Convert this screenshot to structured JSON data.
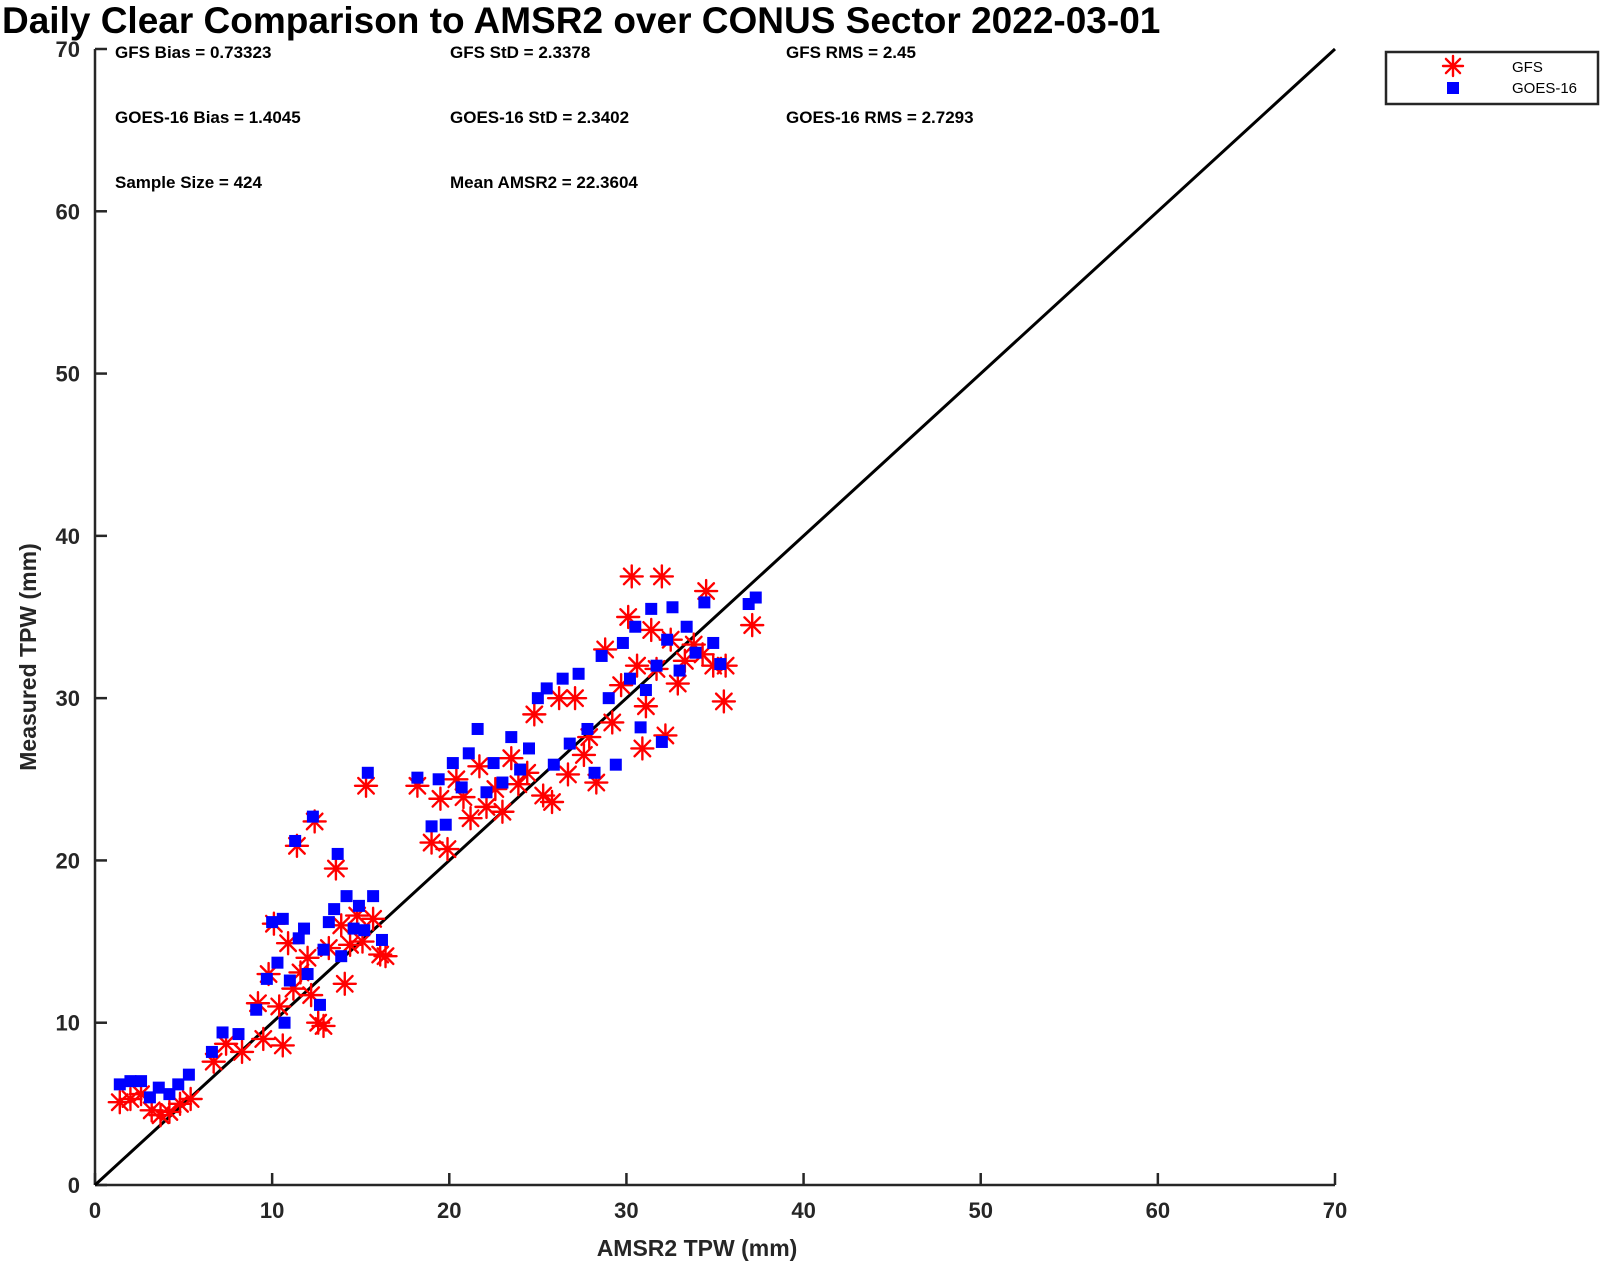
{
  "chart_data": {
    "type": "scatter",
    "title": "Daily Clear Comparison to AMSR2 over CONUS Sector 2022-03-01",
    "xlabel": "AMSR2 TPW (mm)",
    "ylabel": "Measured TPW (mm)",
    "xlim": [
      0,
      70
    ],
    "ylim": [
      0,
      70
    ],
    "xticks": [
      "0",
      "10",
      "20",
      "30",
      "40",
      "50",
      "60",
      "70"
    ],
    "yticks": [
      "0",
      "10",
      "20",
      "30",
      "40",
      "50",
      "60",
      "70"
    ],
    "reference_line": {
      "name": "1:1 line",
      "from": [
        0,
        0
      ],
      "to": [
        70,
        70
      ],
      "color": "#000000"
    },
    "stats": [
      "GFS Bias = 0.73323",
      "GFS StD = 2.3378",
      "GFS RMS = 2.45",
      "GOES-16 Bias = 1.4045",
      "GOES-16 StD = 2.3402",
      "GOES-16 RMS = 2.7293",
      "Sample Size = 424",
      "Mean AMSR2 = 22.3604"
    ],
    "legend": {
      "position": "top-right",
      "entries": [
        "GFS",
        "GOES-16"
      ]
    },
    "series": [
      {
        "name": "GFS",
        "marker": "asterisk",
        "color": "#ff0000",
        "points": [
          [
            1.4,
            5.1
          ],
          [
            2.0,
            5.3
          ],
          [
            2.6,
            5.6
          ],
          [
            3.2,
            4.6
          ],
          [
            3.7,
            4.3
          ],
          [
            4.2,
            4.5
          ],
          [
            4.8,
            5.0
          ],
          [
            5.4,
            5.3
          ],
          [
            6.7,
            7.6
          ],
          [
            7.4,
            8.7
          ],
          [
            8.3,
            8.2
          ],
          [
            9.2,
            11.2
          ],
          [
            9.5,
            9.0
          ],
          [
            9.8,
            13.0
          ],
          [
            10.1,
            16.1
          ],
          [
            10.4,
            11.0
          ],
          [
            10.6,
            8.6
          ],
          [
            10.9,
            14.9
          ],
          [
            11.2,
            12.1
          ],
          [
            11.4,
            20.9
          ],
          [
            11.6,
            13.1
          ],
          [
            12.0,
            14.0
          ],
          [
            12.2,
            11.7
          ],
          [
            12.4,
            22.4
          ],
          [
            12.6,
            10.0
          ],
          [
            12.9,
            9.8
          ],
          [
            13.2,
            14.6
          ],
          [
            13.6,
            19.5
          ],
          [
            13.9,
            16.0
          ],
          [
            14.1,
            12.4
          ],
          [
            14.4,
            14.8
          ],
          [
            14.8,
            16.6
          ],
          [
            15.1,
            15.0
          ],
          [
            15.3,
            24.6
          ],
          [
            15.7,
            16.4
          ],
          [
            16.1,
            14.2
          ],
          [
            16.4,
            14.1
          ],
          [
            18.2,
            24.6
          ],
          [
            19.0,
            21.1
          ],
          [
            19.5,
            23.8
          ],
          [
            19.9,
            20.7
          ],
          [
            20.4,
            25.0
          ],
          [
            20.8,
            23.9
          ],
          [
            21.2,
            22.6
          ],
          [
            21.7,
            25.8
          ],
          [
            22.1,
            23.3
          ],
          [
            22.6,
            24.4
          ],
          [
            23.0,
            23.0
          ],
          [
            23.5,
            26.3
          ],
          [
            23.9,
            24.7
          ],
          [
            24.4,
            25.4
          ],
          [
            24.8,
            29.0
          ],
          [
            25.3,
            24.0
          ],
          [
            25.8,
            23.6
          ],
          [
            26.2,
            30.0
          ],
          [
            26.7,
            25.3
          ],
          [
            27.1,
            30.0
          ],
          [
            27.6,
            26.5
          ],
          [
            27.9,
            27.6
          ],
          [
            28.3,
            24.8
          ],
          [
            28.8,
            33.0
          ],
          [
            29.2,
            28.5
          ],
          [
            29.7,
            30.8
          ],
          [
            30.1,
            35.0
          ],
          [
            30.3,
            37.5
          ],
          [
            30.6,
            32.0
          ],
          [
            30.9,
            26.9
          ],
          [
            31.1,
            29.5
          ],
          [
            31.4,
            34.2
          ],
          [
            31.7,
            31.8
          ],
          [
            32.0,
            37.5
          ],
          [
            32.2,
            27.7
          ],
          [
            32.5,
            33.6
          ],
          [
            32.9,
            30.9
          ],
          [
            33.3,
            32.3
          ],
          [
            33.8,
            33.3
          ],
          [
            34.3,
            32.7
          ],
          [
            34.5,
            36.6
          ],
          [
            34.9,
            32.0
          ],
          [
            35.5,
            29.8
          ],
          [
            35.6,
            32.0
          ],
          [
            37.1,
            34.5
          ]
        ]
      },
      {
        "name": "GOES-16",
        "marker": "square",
        "color": "#0000ff",
        "points": [
          [
            1.4,
            6.2
          ],
          [
            2.0,
            6.4
          ],
          [
            2.6,
            6.4
          ],
          [
            3.1,
            5.4
          ],
          [
            3.6,
            6.0
          ],
          [
            4.2,
            5.6
          ],
          [
            4.7,
            6.2
          ],
          [
            5.3,
            6.8
          ],
          [
            6.6,
            8.2
          ],
          [
            7.2,
            9.4
          ],
          [
            8.1,
            9.3
          ],
          [
            9.1,
            10.8
          ],
          [
            9.7,
            12.7
          ],
          [
            10.0,
            16.2
          ],
          [
            10.3,
            13.7
          ],
          [
            10.6,
            16.4
          ],
          [
            10.7,
            10.0
          ],
          [
            11.0,
            12.6
          ],
          [
            11.3,
            21.2
          ],
          [
            11.5,
            15.2
          ],
          [
            11.8,
            15.8
          ],
          [
            12.0,
            13.0
          ],
          [
            12.3,
            22.7
          ],
          [
            12.7,
            11.1
          ],
          [
            12.9,
            14.5
          ],
          [
            13.2,
            16.2
          ],
          [
            13.5,
            17.0
          ],
          [
            13.7,
            20.4
          ],
          [
            13.9,
            14.1
          ],
          [
            14.2,
            17.8
          ],
          [
            14.6,
            15.8
          ],
          [
            14.9,
            17.2
          ],
          [
            15.2,
            15.7
          ],
          [
            15.4,
            25.4
          ],
          [
            15.7,
            17.8
          ],
          [
            16.2,
            15.1
          ],
          [
            18.2,
            25.1
          ],
          [
            19.0,
            22.1
          ],
          [
            19.4,
            25.0
          ],
          [
            19.8,
            22.2
          ],
          [
            20.2,
            26.0
          ],
          [
            20.7,
            24.5
          ],
          [
            21.1,
            26.6
          ],
          [
            21.6,
            28.1
          ],
          [
            22.1,
            24.2
          ],
          [
            22.5,
            26.0
          ],
          [
            23.0,
            24.8
          ],
          [
            23.5,
            27.6
          ],
          [
            24.0,
            25.6
          ],
          [
            24.5,
            26.9
          ],
          [
            25.0,
            30.0
          ],
          [
            25.5,
            30.6
          ],
          [
            25.9,
            25.9
          ],
          [
            26.4,
            31.2
          ],
          [
            26.8,
            27.2
          ],
          [
            27.3,
            31.5
          ],
          [
            27.8,
            28.1
          ],
          [
            28.2,
            25.4
          ],
          [
            28.6,
            32.6
          ],
          [
            29.0,
            30.0
          ],
          [
            29.4,
            25.9
          ],
          [
            29.8,
            33.4
          ],
          [
            30.2,
            31.2
          ],
          [
            30.5,
            34.4
          ],
          [
            30.8,
            28.2
          ],
          [
            31.1,
            30.5
          ],
          [
            31.4,
            35.5
          ],
          [
            31.7,
            32.0
          ],
          [
            32.0,
            27.3
          ],
          [
            32.3,
            33.6
          ],
          [
            32.6,
            35.6
          ],
          [
            33.0,
            31.7
          ],
          [
            33.4,
            34.4
          ],
          [
            33.9,
            32.8
          ],
          [
            34.4,
            35.9
          ],
          [
            34.9,
            33.4
          ],
          [
            35.3,
            32.1
          ],
          [
            36.9,
            35.8
          ],
          [
            37.3,
            36.2
          ]
        ]
      }
    ]
  }
}
